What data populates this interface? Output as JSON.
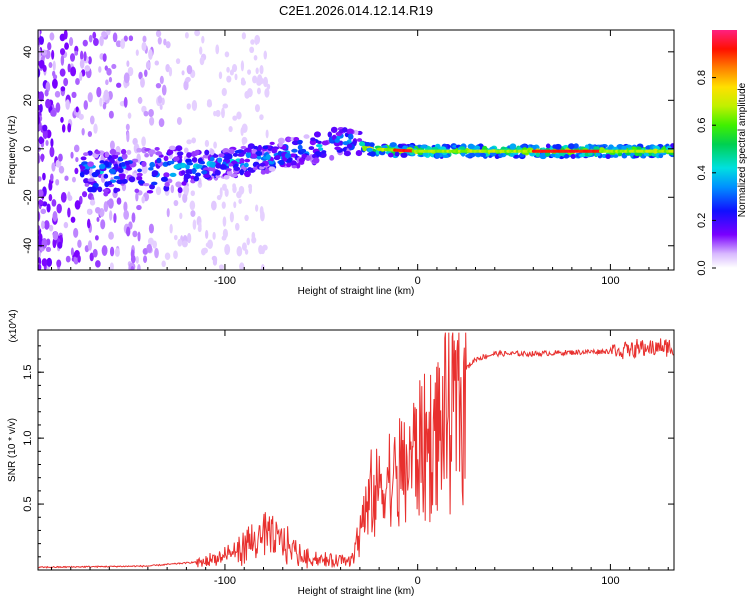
{
  "title": "C2E1.2026.014.12.14.R19",
  "chart_data": [
    {
      "type": "heatmap",
      "name": "spectrogram",
      "xlabel": "Height of straight line (km)",
      "ylabel": "Frequency (Hz)",
      "xlim": [
        -197,
        133
      ],
      "ylim": [
        -50,
        49
      ],
      "xticks": [
        -100,
        0,
        100
      ],
      "yticks": [
        -40,
        -20,
        0,
        20,
        40
      ],
      "colorbar": {
        "label": "Normalized spectral amplitude",
        "range": [
          0,
          1
        ],
        "ticks": [
          0.0,
          0.2,
          0.4,
          0.6,
          0.8
        ]
      },
      "ridge": {
        "description_points": [
          {
            "x": -160,
            "y": -10
          },
          {
            "x": -120,
            "y": -8
          },
          {
            "x": -80,
            "y": -4
          },
          {
            "x": -55,
            "y": 0
          },
          {
            "x": -40,
            "y": 3
          },
          {
            "x": -25,
            "y": 0
          },
          {
            "x": 0,
            "y": -1
          },
          {
            "x": 50,
            "y": -1
          },
          {
            "x": 100,
            "y": -1
          },
          {
            "x": 130,
            "y": -1
          }
        ]
      }
    },
    {
      "type": "line",
      "name": "snr",
      "xlabel": "Height of straight line (km)",
      "ylabel": "SNR (10 * v/v)",
      "y_multiplier": "(x10^4)",
      "xlim": [
        -197,
        133
      ],
      "ylim": [
        0,
        1.82
      ],
      "xticks": [
        -100,
        0,
        100
      ],
      "yticks": [
        0.5,
        1.0,
        1.5
      ],
      "ytick_labels": [
        "0.5",
        "1.0",
        "1.5"
      ],
      "color": "#e8302e",
      "envelope": [
        {
          "x": -197,
          "y": 0.02
        },
        {
          "x": -140,
          "y": 0.03
        },
        {
          "x": -115,
          "y": 0.06
        },
        {
          "x": -100,
          "y": 0.12
        },
        {
          "x": -90,
          "y": 0.2
        },
        {
          "x": -80,
          "y": 0.3
        },
        {
          "x": -70,
          "y": 0.25
        },
        {
          "x": -60,
          "y": 0.12
        },
        {
          "x": -45,
          "y": 0.08
        },
        {
          "x": -35,
          "y": 0.1
        },
        {
          "x": -30,
          "y": 0.3
        },
        {
          "x": -25,
          "y": 0.6
        },
        {
          "x": -18,
          "y": 0.75
        },
        {
          "x": -12,
          "y": 0.8
        },
        {
          "x": -5,
          "y": 0.95
        },
        {
          "x": 0,
          "y": 1.05
        },
        {
          "x": 10,
          "y": 1.2
        },
        {
          "x": 20,
          "y": 1.45
        },
        {
          "x": 30,
          "y": 1.6
        },
        {
          "x": 40,
          "y": 1.64
        },
        {
          "x": 60,
          "y": 1.64
        },
        {
          "x": 80,
          "y": 1.65
        },
        {
          "x": 100,
          "y": 1.66
        },
        {
          "x": 115,
          "y": 1.68
        },
        {
          "x": 133,
          "y": 1.69
        }
      ]
    }
  ]
}
